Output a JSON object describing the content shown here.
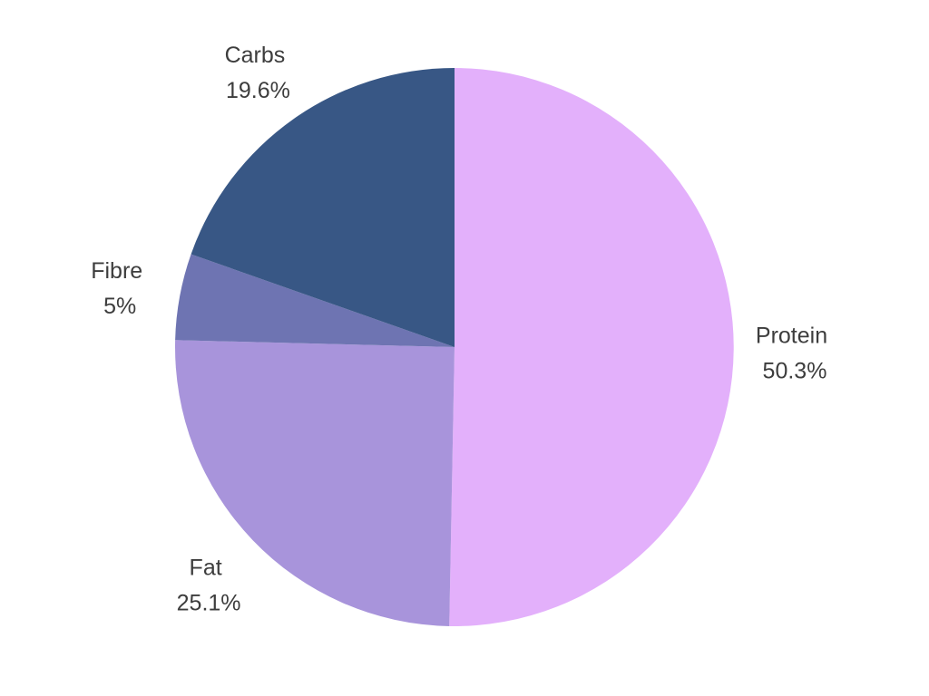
{
  "chart_data": {
    "type": "pie",
    "title": "",
    "slices": [
      {
        "label": "Protein",
        "value": 50.3,
        "display": "50.3%",
        "color": "#e3b0fb"
      },
      {
        "label": "Fat",
        "value": 25.1,
        "display": "25.1%",
        "color": "#a894db"
      },
      {
        "label": "Fibre",
        "value": 5,
        "display": "5%",
        "color": "#6e74b2"
      },
      {
        "label": "Carbs",
        "value": 19.6,
        "display": "19.6%",
        "color": "#385785"
      }
    ],
    "start_position": "top",
    "direction": "clockwise",
    "legend": "none"
  }
}
